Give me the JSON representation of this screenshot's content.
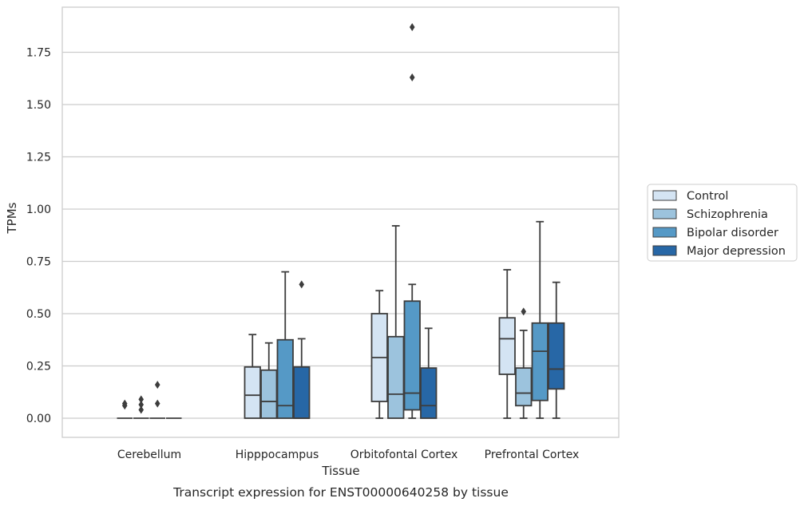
{
  "caption": "Transcript expression for ENST00000640258 by tissue",
  "chart_data": {
    "type": "box",
    "title": "",
    "xlabel": "Tissue",
    "ylabel": "TPMs",
    "ylim": [
      -0.09,
      1.96
    ],
    "yticks": [
      "0.00",
      "0.25",
      "0.50",
      "0.75",
      "1.00",
      "1.25",
      "1.50",
      "1.75"
    ],
    "grid": "horizontal",
    "legend_position": "right",
    "categories": [
      "Cerebellum",
      "Hipppocampus",
      "Orbitofontal Cortex",
      "Prefrontal Cortex"
    ],
    "series": [
      {
        "name": "Control",
        "color": "#d4e4f3",
        "boxes": [
          {
            "whislo": 0,
            "q1": 0,
            "med": 0,
            "q3": 0,
            "whishi": 0,
            "fliers": [
              0.07,
              0.06
            ]
          },
          {
            "whislo": 0,
            "q1": 0,
            "med": 0.11,
            "q3": 0.245,
            "whishi": 0.4,
            "fliers": []
          },
          {
            "whislo": 0,
            "q1": 0.08,
            "med": 0.29,
            "q3": 0.5,
            "whishi": 0.61,
            "fliers": []
          },
          {
            "whislo": 0,
            "q1": 0.21,
            "med": 0.38,
            "q3": 0.48,
            "whishi": 0.71,
            "fliers": []
          }
        ]
      },
      {
        "name": "Schizophrenia",
        "color": "#9cc3dd",
        "boxes": [
          {
            "whislo": 0,
            "q1": 0,
            "med": 0,
            "q3": 0,
            "whishi": 0,
            "fliers": [
              0.09,
              0.065,
              0.04
            ]
          },
          {
            "whislo": 0,
            "q1": 0,
            "med": 0.08,
            "q3": 0.23,
            "whishi": 0.36,
            "fliers": []
          },
          {
            "whislo": 0,
            "q1": 0,
            "med": 0.115,
            "q3": 0.39,
            "whishi": 0.92,
            "fliers": []
          },
          {
            "whislo": 0,
            "q1": 0.06,
            "med": 0.12,
            "q3": 0.24,
            "whishi": 0.42,
            "fliers": [
              0.51
            ]
          }
        ]
      },
      {
        "name": "Bipolar disorder",
        "color": "#5599c6",
        "boxes": [
          {
            "whislo": 0,
            "q1": 0,
            "med": 0,
            "q3": 0,
            "whishi": 0,
            "fliers": [
              0.16,
              0.07
            ]
          },
          {
            "whislo": 0,
            "q1": 0,
            "med": 0.06,
            "q3": 0.375,
            "whishi": 0.7,
            "fliers": []
          },
          {
            "whislo": 0,
            "q1": 0.04,
            "med": 0.12,
            "q3": 0.56,
            "whishi": 0.64,
            "fliers": [
              1.63,
              1.87
            ]
          },
          {
            "whislo": 0,
            "q1": 0.085,
            "med": 0.32,
            "q3": 0.455,
            "whishi": 0.94,
            "fliers": []
          }
        ]
      },
      {
        "name": "Major depression",
        "color": "#2767a6",
        "boxes": [
          {
            "whislo": 0,
            "q1": 0,
            "med": 0,
            "q3": 0,
            "whishi": 0,
            "fliers": []
          },
          {
            "whislo": 0,
            "q1": 0,
            "med": 0,
            "q3": 0.245,
            "whishi": 0.38,
            "fliers": [
              0.64
            ]
          },
          {
            "whislo": 0,
            "q1": 0,
            "med": 0.06,
            "q3": 0.24,
            "whishi": 0.43,
            "fliers": []
          },
          {
            "whislo": 0,
            "q1": 0.14,
            "med": 0.235,
            "q3": 0.455,
            "whishi": 0.65,
            "fliers": []
          }
        ]
      }
    ]
  }
}
